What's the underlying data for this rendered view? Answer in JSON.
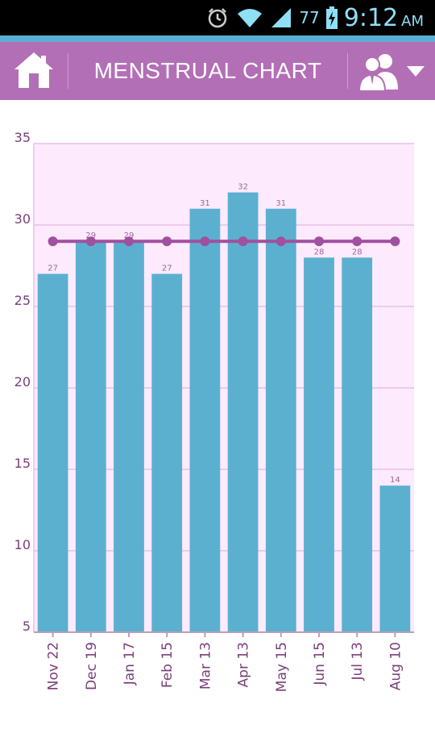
{
  "status_bar": {
    "battery_percent": "77",
    "time": "9:12",
    "ampm": "AM",
    "icons": [
      "alarm-icon",
      "wifi-icon",
      "signal-icon",
      "battery-charging-icon"
    ]
  },
  "app_bar": {
    "title": "MENSTRUAL CHART",
    "left_icon": "home-icon",
    "right_icon": "users-icon",
    "dropdown_icon": "chevron-down-icon",
    "background_color": "#b36fb6"
  },
  "chart_data": {
    "type": "bar",
    "categories": [
      "Nov 22",
      "Dec 19",
      "Jan 17",
      "Feb 15",
      "Mar 13",
      "Apr 13",
      "May 15",
      "Jun 15",
      "Jul 13",
      "Aug 10"
    ],
    "values": [
      27,
      29,
      29,
      27,
      31,
      32,
      31,
      28,
      28,
      14
    ],
    "data_labels": [
      "27",
      "29",
      "29",
      "27",
      "31",
      "32",
      "31",
      "28",
      "28",
      "14"
    ],
    "average_line": [
      29,
      29,
      29,
      29,
      29,
      29,
      29,
      29,
      29,
      29
    ],
    "y_ticks": [
      "5",
      "10",
      "15",
      "20",
      "25",
      "30",
      "35"
    ],
    "ylim": [
      5,
      35
    ],
    "grid": true,
    "bar_color": "#5bb0d0",
    "line_color": "#a0509e",
    "plot_background": "#fdeafd",
    "grid_color": "#e8bfe8",
    "tick_label_color": "#7a3f7a"
  }
}
